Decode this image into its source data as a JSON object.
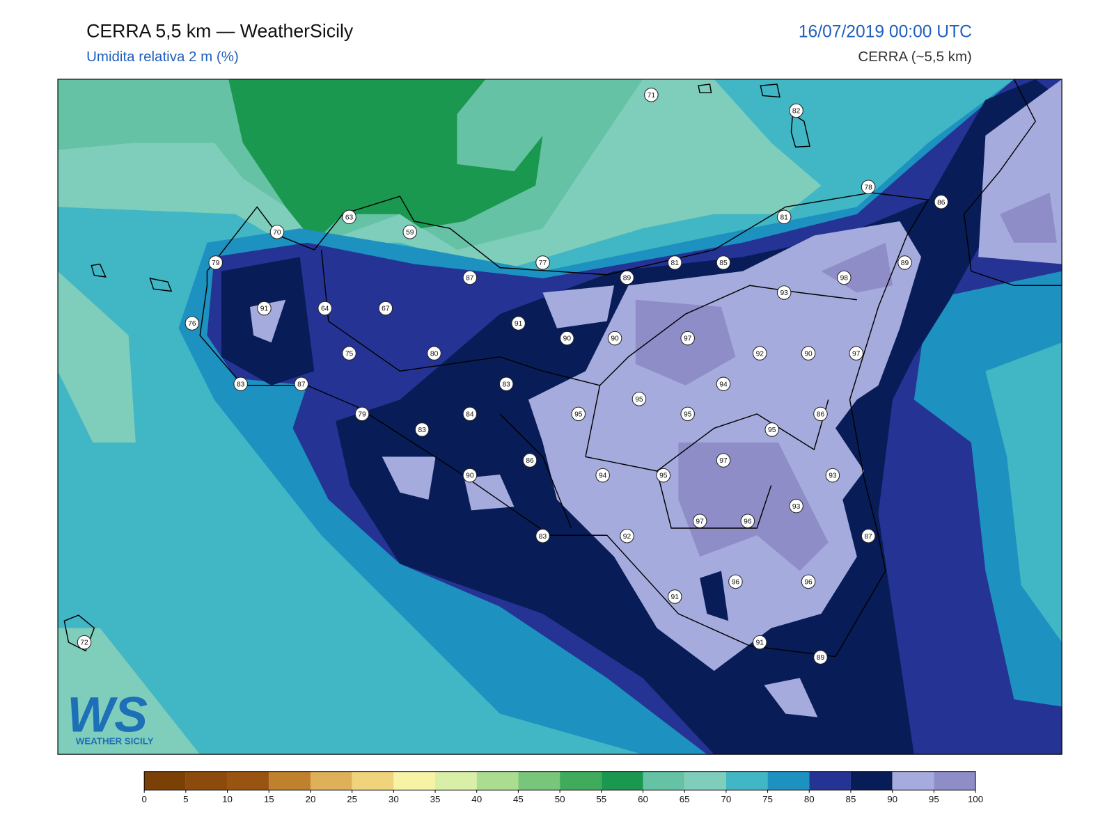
{
  "header": {
    "title": "CERRA 5,5 km — WeatherSicily",
    "subtitle": "Umidita relativa 2 m (%)",
    "datetime": "16/07/2019 00:00 UTC",
    "model": "CERRA (~5,5 km)"
  },
  "stations": [
    71,
    82,
    78,
    86,
    81,
    63,
    59,
    70,
    79,
    77,
    81,
    85,
    89,
    87,
    89,
    98,
    93,
    91,
    64,
    67,
    91,
    76,
    90,
    90,
    97,
    92,
    90,
    97,
    75,
    80,
    83,
    94,
    83,
    87,
    95,
    79,
    84,
    95,
    95,
    86,
    83,
    95,
    86,
    97,
    90,
    94,
    95,
    93,
    93,
    97,
    96,
    83,
    92,
    87,
    96,
    96,
    91,
    91,
    89,
    72
  ],
  "colorbar": {
    "ticks": [
      0,
      5,
      10,
      15,
      20,
      25,
      30,
      35,
      40,
      45,
      50,
      55,
      60,
      65,
      70,
      75,
      80,
      85,
      90,
      95,
      100
    ],
    "colors": [
      "#7a4006",
      "#8c4a0c",
      "#9a5412",
      "#bf812d",
      "#dfb05a",
      "#f0d47c",
      "#f6f2a6",
      "#d9eea7",
      "#aadd90",
      "#78c679",
      "#41ab5d",
      "#1a9850",
      "#66c2a4",
      "#7fcdbb",
      "#41b6c4",
      "#1d91c0",
      "#253494",
      "#081d58",
      "#a6abde",
      "#8f8dc8"
    ]
  },
  "logo": {
    "mark": "WS",
    "name": "WEATHER SICILY"
  }
}
